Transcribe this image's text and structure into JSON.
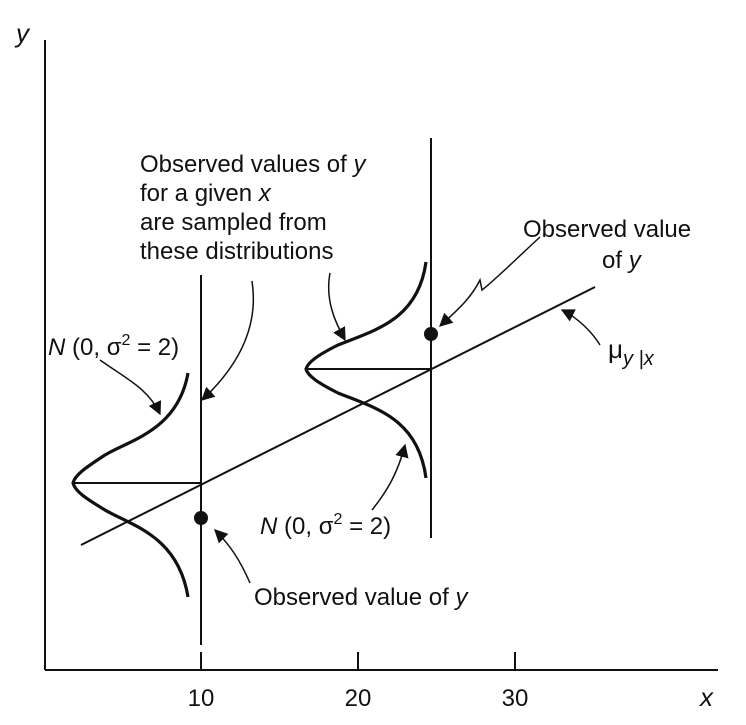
{
  "axes": {
    "y_label": "y",
    "x_label": "x",
    "x_ticks": [
      "10",
      "20",
      "30"
    ]
  },
  "annotations": {
    "sampled_text": {
      "l1a": "Observed values of ",
      "l1b": "y",
      "l2a": "for a given ",
      "l2b": "x",
      "l3": "are sampled from",
      "l4": "these distributions"
    },
    "dist_left": {
      "n": "N",
      "p1": " (0, σ",
      "sup": "2",
      "p2": " = 2)"
    },
    "dist_right": {
      "n": "N",
      "p1": " (0, σ",
      "sup": "2",
      "p2": " = 2)"
    },
    "obs_upper": {
      "l1": "Observed value",
      "l2a": "of ",
      "l2b": "y"
    },
    "obs_lower": {
      "a": "Observed value of ",
      "b": "y"
    },
    "mean_line": {
      "mu": "μ",
      "sub": "y |x"
    }
  },
  "colors": {
    "ink": "#111111",
    "background": "#ffffff"
  }
}
